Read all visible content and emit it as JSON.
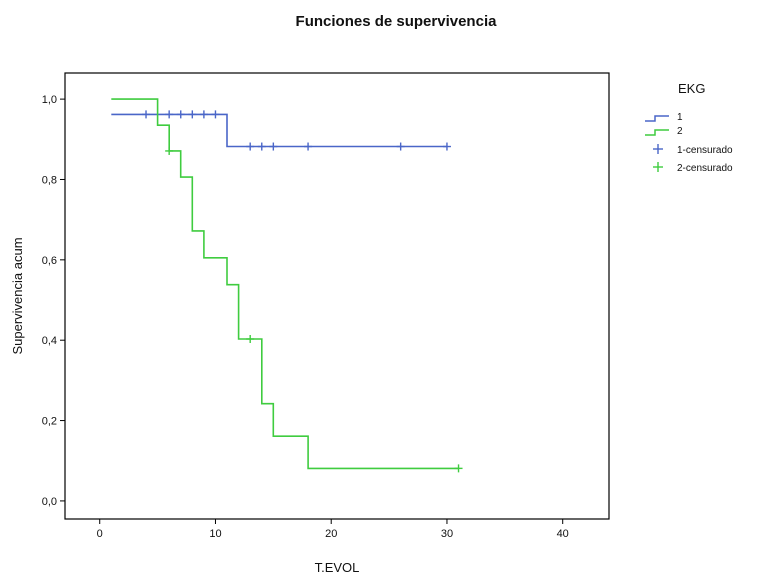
{
  "chart_data": {
    "type": "line",
    "title": "Funciones de supervivencia",
    "xlabel": "T.EVOL",
    "ylabel": "Supervivencia acum",
    "xlim": [
      -3,
      44
    ],
    "ylim": [
      -0.045,
      1.065
    ],
    "x_ticks": [
      0,
      10,
      20,
      30,
      40
    ],
    "x_tick_labels": [
      "0",
      "10",
      "20",
      "30",
      "40"
    ],
    "y_ticks": [
      0.0,
      0.2,
      0.4,
      0.6,
      0.8,
      1.0
    ],
    "y_tick_labels": [
      "0,0",
      "0,2",
      "0,4",
      "0,6",
      "0,8",
      "1,0"
    ],
    "grid": false,
    "legend_position": "right",
    "legend_title": "EKG",
    "series": [
      {
        "name": "1",
        "censored_name": "1-censurado",
        "color": "#4a66c8",
        "step_x": [
          1,
          11,
          11,
          30
        ],
        "step_y": [
          0.962,
          0.962,
          0.882,
          0.882
        ],
        "censored": [
          {
            "x": 4,
            "y": 0.962
          },
          {
            "x": 6,
            "y": 0.962
          },
          {
            "x": 7,
            "y": 0.962
          },
          {
            "x": 8,
            "y": 0.962
          },
          {
            "x": 9,
            "y": 0.962
          },
          {
            "x": 10,
            "y": 0.962
          },
          {
            "x": 13,
            "y": 0.882
          },
          {
            "x": 14,
            "y": 0.882
          },
          {
            "x": 15,
            "y": 0.882
          },
          {
            "x": 18,
            "y": 0.882
          },
          {
            "x": 26,
            "y": 0.882
          },
          {
            "x": 30,
            "y": 0.882
          }
        ]
      },
      {
        "name": "2",
        "censored_name": "2-censurado",
        "color": "#3fcc3f",
        "step_x": [
          1,
          5,
          5,
          6,
          6,
          7,
          7,
          8,
          8,
          9,
          9,
          11,
          11,
          12,
          12,
          14,
          14,
          15,
          15,
          18,
          18,
          31
        ],
        "step_y": [
          1.0,
          1.0,
          0.935,
          0.935,
          0.871,
          0.871,
          0.806,
          0.806,
          0.672,
          0.672,
          0.605,
          0.605,
          0.538,
          0.538,
          0.403,
          0.403,
          0.242,
          0.242,
          0.161,
          0.161,
          0.081,
          0.081
        ],
        "censored": [
          {
            "x": 6,
            "y": 0.871
          },
          {
            "x": 13,
            "y": 0.403
          },
          {
            "x": 31,
            "y": 0.081
          }
        ]
      }
    ]
  }
}
